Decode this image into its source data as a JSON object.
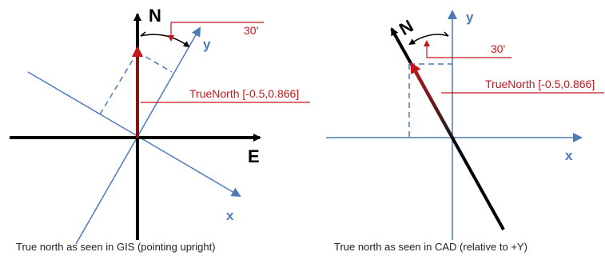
{
  "colors": {
    "blue_axis": "#4e79b8",
    "black_axis": "#000000",
    "red": "#c4161c",
    "dark_red": "#8b1010",
    "caption": "#222222"
  },
  "gis": {
    "north_label": "N",
    "east_label": "E",
    "y_label": "y",
    "x_label": "x",
    "angle_label": "30'",
    "true_north_label": "TrueNorth [-0.5,0.866]",
    "caption": "True north as seen in GIS (pointing upright)"
  },
  "cad": {
    "north_label": "N",
    "y_label": "y",
    "x_label": "x",
    "angle_label": "30'",
    "true_north_label": "TrueNorth [-0.5,0.866]",
    "caption": "True north as seen in CAD (relative to +Y)"
  }
}
